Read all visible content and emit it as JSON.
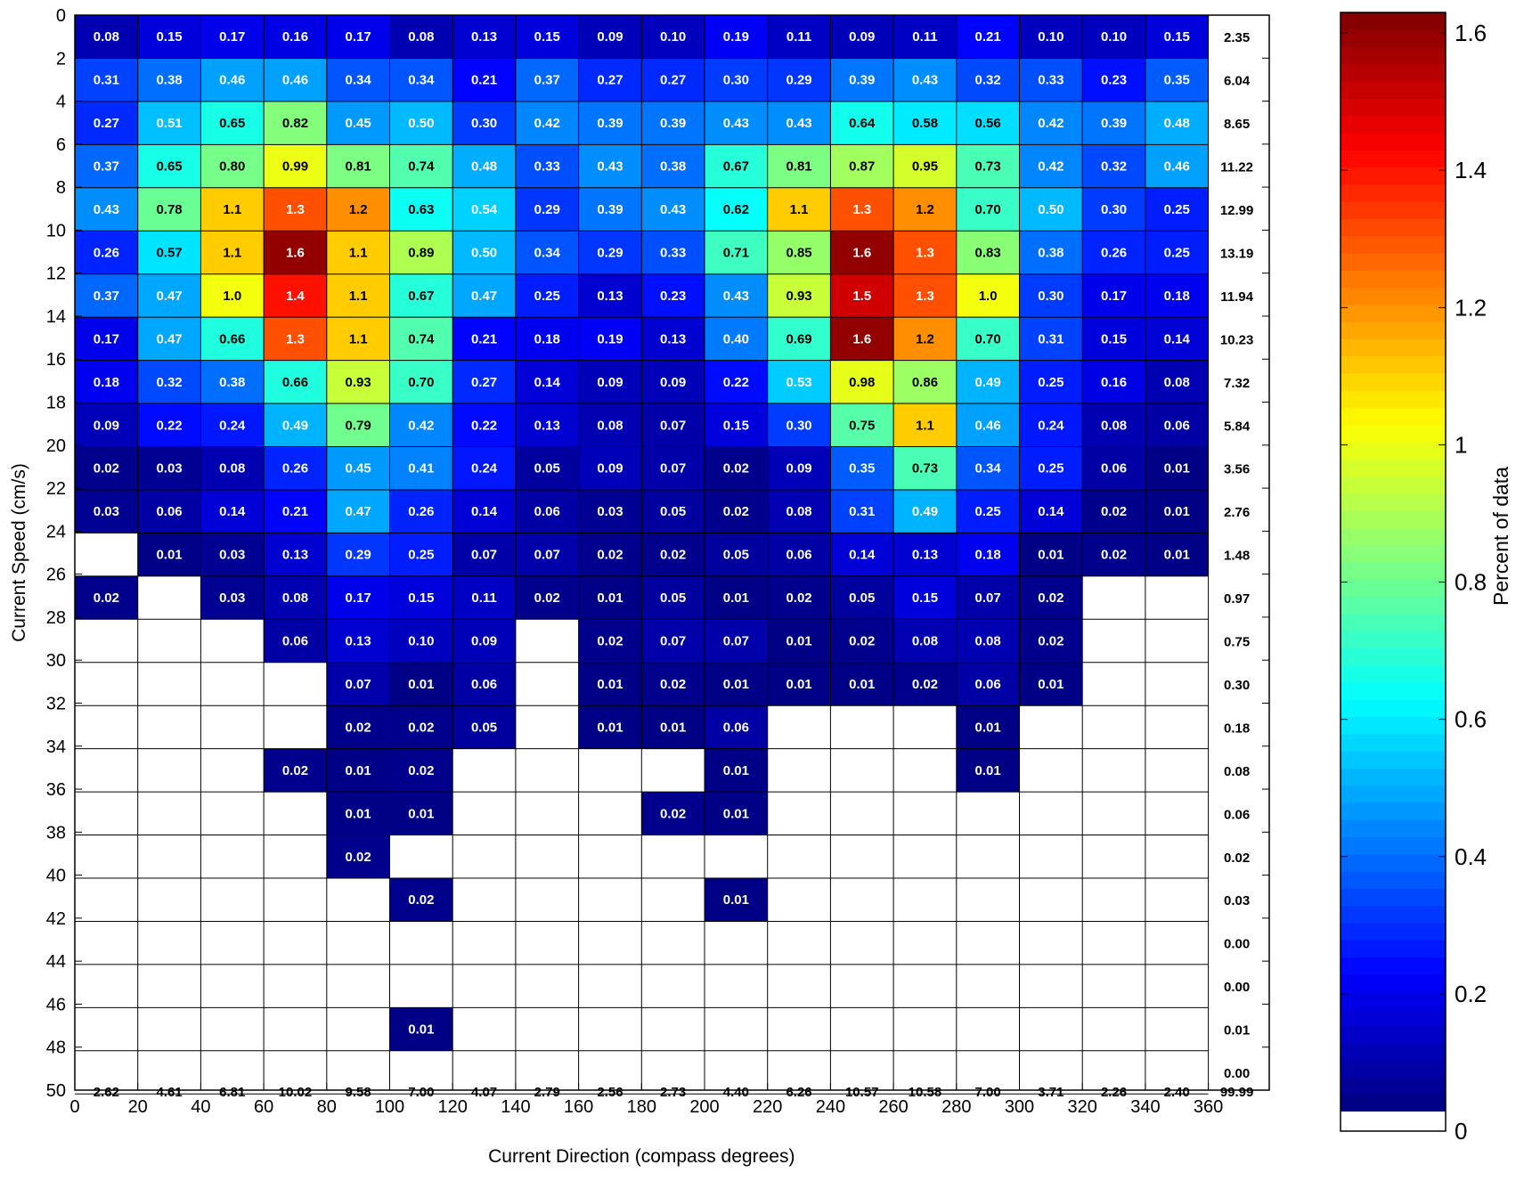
{
  "chart_data": {
    "type": "heatmap",
    "xlabel": "Current Direction (compass degrees)",
    "ylabel": "Current Speed (cm/s)",
    "colorbar_label": "Percent of data",
    "xlim": [
      0,
      360
    ],
    "ylim": [
      0,
      50
    ],
    "x_ticks": [
      "0",
      "20",
      "40",
      "60",
      "80",
      "100",
      "120",
      "140",
      "160",
      "180",
      "200",
      "220",
      "240",
      "260",
      "280",
      "300",
      "320",
      "340",
      "360"
    ],
    "y_ticks": [
      "0",
      "2",
      "4",
      "6",
      "8",
      "10",
      "12",
      "14",
      "16",
      "18",
      "20",
      "22",
      "24",
      "26",
      "28",
      "30",
      "32",
      "34",
      "36",
      "38",
      "40",
      "42",
      "44",
      "46",
      "48",
      "50"
    ],
    "colorbar_range": [
      0,
      1.63
    ],
    "colorbar_ticks": [
      "0",
      "0.2",
      "0.4",
      "0.6",
      "0.8",
      "1",
      "1.2",
      "1.4",
      "1.6"
    ],
    "colormap": "jet",
    "direction_bin_width_deg": 20,
    "speed_bin_width_cms": 2,
    "cells": [
      [
        "0.08",
        "0.15",
        "0.17",
        "0.16",
        "0.17",
        "0.08",
        "0.13",
        "0.15",
        "0.09",
        "0.10",
        "0.19",
        "0.11",
        "0.09",
        "0.11",
        "0.21",
        "0.10",
        "0.10",
        "0.15"
      ],
      [
        "0.31",
        "0.38",
        "0.46",
        "0.46",
        "0.34",
        "0.34",
        "0.21",
        "0.37",
        "0.27",
        "0.27",
        "0.30",
        "0.29",
        "0.39",
        "0.43",
        "0.32",
        "0.33",
        "0.23",
        "0.35"
      ],
      [
        "0.27",
        "0.51",
        "0.65",
        "0.82",
        "0.45",
        "0.50",
        "0.30",
        "0.42",
        "0.39",
        "0.39",
        "0.43",
        "0.43",
        "0.64",
        "0.58",
        "0.56",
        "0.42",
        "0.39",
        "0.48"
      ],
      [
        "0.37",
        "0.65",
        "0.80",
        "0.99",
        "0.81",
        "0.74",
        "0.48",
        "0.33",
        "0.43",
        "0.38",
        "0.67",
        "0.81",
        "0.87",
        "0.95",
        "0.73",
        "0.42",
        "0.32",
        "0.46"
      ],
      [
        "0.43",
        "0.78",
        "1.1",
        "1.3",
        "1.2",
        "0.63",
        "0.54",
        "0.29",
        "0.39",
        "0.43",
        "0.62",
        "1.1",
        "1.3",
        "1.2",
        "0.70",
        "0.50",
        "0.30",
        "0.25"
      ],
      [
        "0.26",
        "0.57",
        "1.1",
        "1.6",
        "1.1",
        "0.89",
        "0.50",
        "0.34",
        "0.29",
        "0.33",
        "0.71",
        "0.85",
        "1.6",
        "1.3",
        "0.83",
        "0.38",
        "0.26",
        "0.25"
      ],
      [
        "0.37",
        "0.47",
        "1.0",
        "1.4",
        "1.1",
        "0.67",
        "0.47",
        "0.25",
        "0.13",
        "0.23",
        "0.43",
        "0.93",
        "1.5",
        "1.3",
        "1.0",
        "0.30",
        "0.17",
        "0.18"
      ],
      [
        "0.17",
        "0.47",
        "0.66",
        "1.3",
        "1.1",
        "0.74",
        "0.21",
        "0.18",
        "0.19",
        "0.13",
        "0.40",
        "0.69",
        "1.6",
        "1.2",
        "0.70",
        "0.31",
        "0.15",
        "0.14"
      ],
      [
        "0.18",
        "0.32",
        "0.38",
        "0.66",
        "0.93",
        "0.70",
        "0.27",
        "0.14",
        "0.09",
        "0.09",
        "0.22",
        "0.53",
        "0.98",
        "0.86",
        "0.49",
        "0.25",
        "0.16",
        "0.08"
      ],
      [
        "0.09",
        "0.22",
        "0.24",
        "0.49",
        "0.79",
        "0.42",
        "0.22",
        "0.13",
        "0.08",
        "0.07",
        "0.15",
        "0.30",
        "0.75",
        "1.1",
        "0.46",
        "0.24",
        "0.08",
        "0.06"
      ],
      [
        "0.02",
        "0.03",
        "0.08",
        "0.26",
        "0.45",
        "0.41",
        "0.24",
        "0.05",
        "0.09",
        "0.07",
        "0.02",
        "0.09",
        "0.35",
        "0.73",
        "0.34",
        "0.25",
        "0.06",
        "0.01"
      ],
      [
        "0.03",
        "0.06",
        "0.14",
        "0.21",
        "0.47",
        "0.26",
        "0.14",
        "0.06",
        "0.03",
        "0.05",
        "0.02",
        "0.08",
        "0.31",
        "0.49",
        "0.25",
        "0.14",
        "0.02",
        "0.01"
      ],
      [
        "",
        "0.01",
        "0.03",
        "0.13",
        "0.29",
        "0.25",
        "0.07",
        "0.07",
        "0.02",
        "0.02",
        "0.05",
        "0.06",
        "0.14",
        "0.13",
        "0.18",
        "0.01",
        "0.02",
        "0.01"
      ],
      [
        "0.02",
        "",
        "0.03",
        "0.08",
        "0.17",
        "0.15",
        "0.11",
        "0.02",
        "0.01",
        "0.05",
        "0.01",
        "0.02",
        "0.05",
        "0.15",
        "0.07",
        "0.02",
        "",
        ""
      ],
      [
        "",
        "",
        "",
        "0.06",
        "0.13",
        "0.10",
        "0.09",
        "",
        "0.02",
        "0.07",
        "0.07",
        "0.01",
        "0.02",
        "0.08",
        "0.08",
        "0.02",
        "",
        ""
      ],
      [
        "",
        "",
        "",
        "",
        "0.07",
        "0.01",
        "0.06",
        "",
        "0.01",
        "0.02",
        "0.01",
        "0.01",
        "0.01",
        "0.02",
        "0.06",
        "0.01",
        "",
        ""
      ],
      [
        "",
        "",
        "",
        "",
        "0.02",
        "0.02",
        "0.05",
        "",
        "0.01",
        "0.01",
        "0.06",
        "",
        "",
        "",
        "0.01",
        "",
        "",
        ""
      ],
      [
        "",
        "",
        "",
        "0.02",
        "0.01",
        "0.02",
        "",
        "",
        "",
        "",
        "0.01",
        "",
        "",
        "",
        "0.01",
        "",
        "",
        ""
      ],
      [
        "",
        "",
        "",
        "",
        "0.01",
        "0.01",
        "",
        "",
        "",
        "0.02",
        "0.01",
        "",
        "",
        "",
        "",
        "",
        "",
        ""
      ],
      [
        "",
        "",
        "",
        "",
        "0.02",
        "",
        "",
        "",
        "",
        "",
        "",
        "",
        "",
        "",
        "",
        "",
        "",
        ""
      ],
      [
        "",
        "",
        "",
        "",
        "",
        "0.02",
        "",
        "",
        "",
        "",
        "0.01",
        "",
        "",
        "",
        "",
        "",
        "",
        ""
      ],
      [
        "",
        "",
        "",
        "",
        "",
        "",
        "",
        "",
        "",
        "",
        "",
        "",
        "",
        "",
        "",
        "",
        "",
        ""
      ],
      [
        "",
        "",
        "",
        "",
        "",
        "",
        "",
        "",
        "",
        "",
        "",
        "",
        "",
        "",
        "",
        "",
        "",
        ""
      ],
      [
        "",
        "",
        "",
        "",
        "",
        "0.01",
        "",
        "",
        "",
        "",
        "",
        "",
        "",
        "",
        "",
        "",
        "",
        ""
      ],
      [
        "",
        "",
        "",
        "",
        "",
        "",
        "",
        "",
        "",
        "",
        "",
        "",
        "",
        "",
        "",
        "",
        "",
        ""
      ]
    ],
    "row_totals": [
      "2.35",
      "6.04",
      "8.65",
      "11.22",
      "12.99",
      "13.19",
      "11.94",
      "10.23",
      "7.32",
      "5.84",
      "3.56",
      "2.76",
      "1.48",
      "0.97",
      "0.75",
      "0.30",
      "0.18",
      "0.08",
      "0.06",
      "0.02",
      "0.03",
      "0.00",
      "0.00",
      "0.01",
      "0.00"
    ],
    "column_totals": [
      "2.62",
      "4.61",
      "6.81",
      "10.02",
      "9.58",
      "7.00",
      "4.07",
      "2.79",
      "2.56",
      "2.73",
      "4.40",
      "6.26",
      "10.57",
      "10.58",
      "7.00",
      "3.71",
      "2.26",
      "2.40"
    ],
    "grand_total": "99.99"
  }
}
